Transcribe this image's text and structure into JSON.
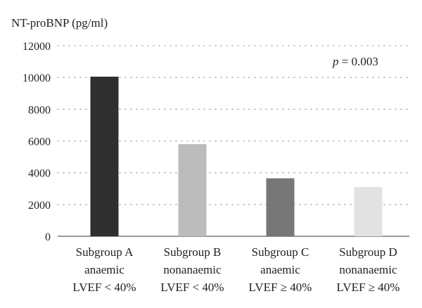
{
  "chart_data": {
    "type": "bar",
    "ylabel": "NT-proBNP (pg/ml)",
    "ylim": [
      0,
      12000
    ],
    "yticks": [
      0,
      2000,
      4000,
      6000,
      8000,
      10000,
      12000
    ],
    "grid": true,
    "categories": [
      [
        "Subgroup A",
        "anaemic",
        "LVEF < 40%"
      ],
      [
        "Subgroup B",
        "nonanaemic",
        "LVEF < 40%"
      ],
      [
        "Subgroup C",
        "anaemic",
        "LVEF ≥ 40%"
      ],
      [
        "Subgroup D",
        "nonanaemic",
        "LVEF ≥ 40%"
      ]
    ],
    "values": [
      10050,
      5800,
      3650,
      3100
    ],
    "colors": [
      "#2f2f2f",
      "#bcbcbc",
      "#777777",
      "#e2e2e2"
    ],
    "annotation": {
      "prefix": "p",
      "text": " = 0.003"
    }
  }
}
